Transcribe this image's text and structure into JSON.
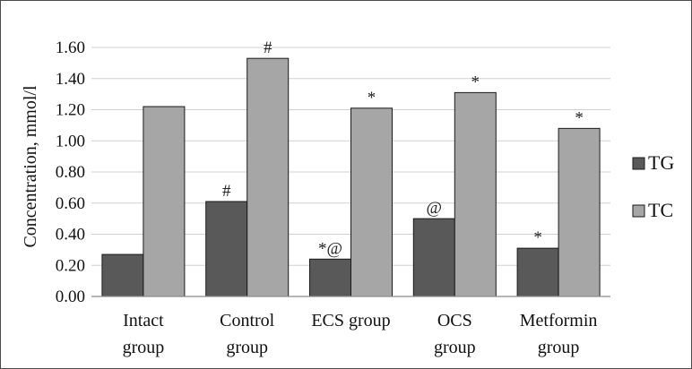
{
  "chart_data": {
    "type": "bar",
    "title": "",
    "ylabel": "Concentration, mmol/l",
    "xlabel": "",
    "ylim": [
      0,
      1.6
    ],
    "yticks": [
      "0.00",
      "0.20",
      "0.40",
      "0.60",
      "0.80",
      "1.00",
      "1.20",
      "1.40",
      "1.60"
    ],
    "grid": true,
    "legend_position": "right",
    "categories": [
      [
        "Intact",
        "group"
      ],
      [
        "Control",
        "group"
      ],
      [
        "ECS group",
        ""
      ],
      [
        "OCS",
        "group"
      ],
      [
        "Metformin",
        "group"
      ]
    ],
    "series": [
      {
        "name": "TG",
        "color": "#595959",
        "values": [
          0.27,
          0.61,
          0.24,
          0.5,
          0.31
        ],
        "annotations": [
          "",
          "#",
          "*@",
          "@",
          "*"
        ]
      },
      {
        "name": "TC",
        "color": "#a6a6a6",
        "values": [
          1.22,
          1.53,
          1.21,
          1.31,
          1.08
        ],
        "annotations": [
          "",
          "#",
          "*",
          "*",
          "*"
        ]
      }
    ]
  }
}
